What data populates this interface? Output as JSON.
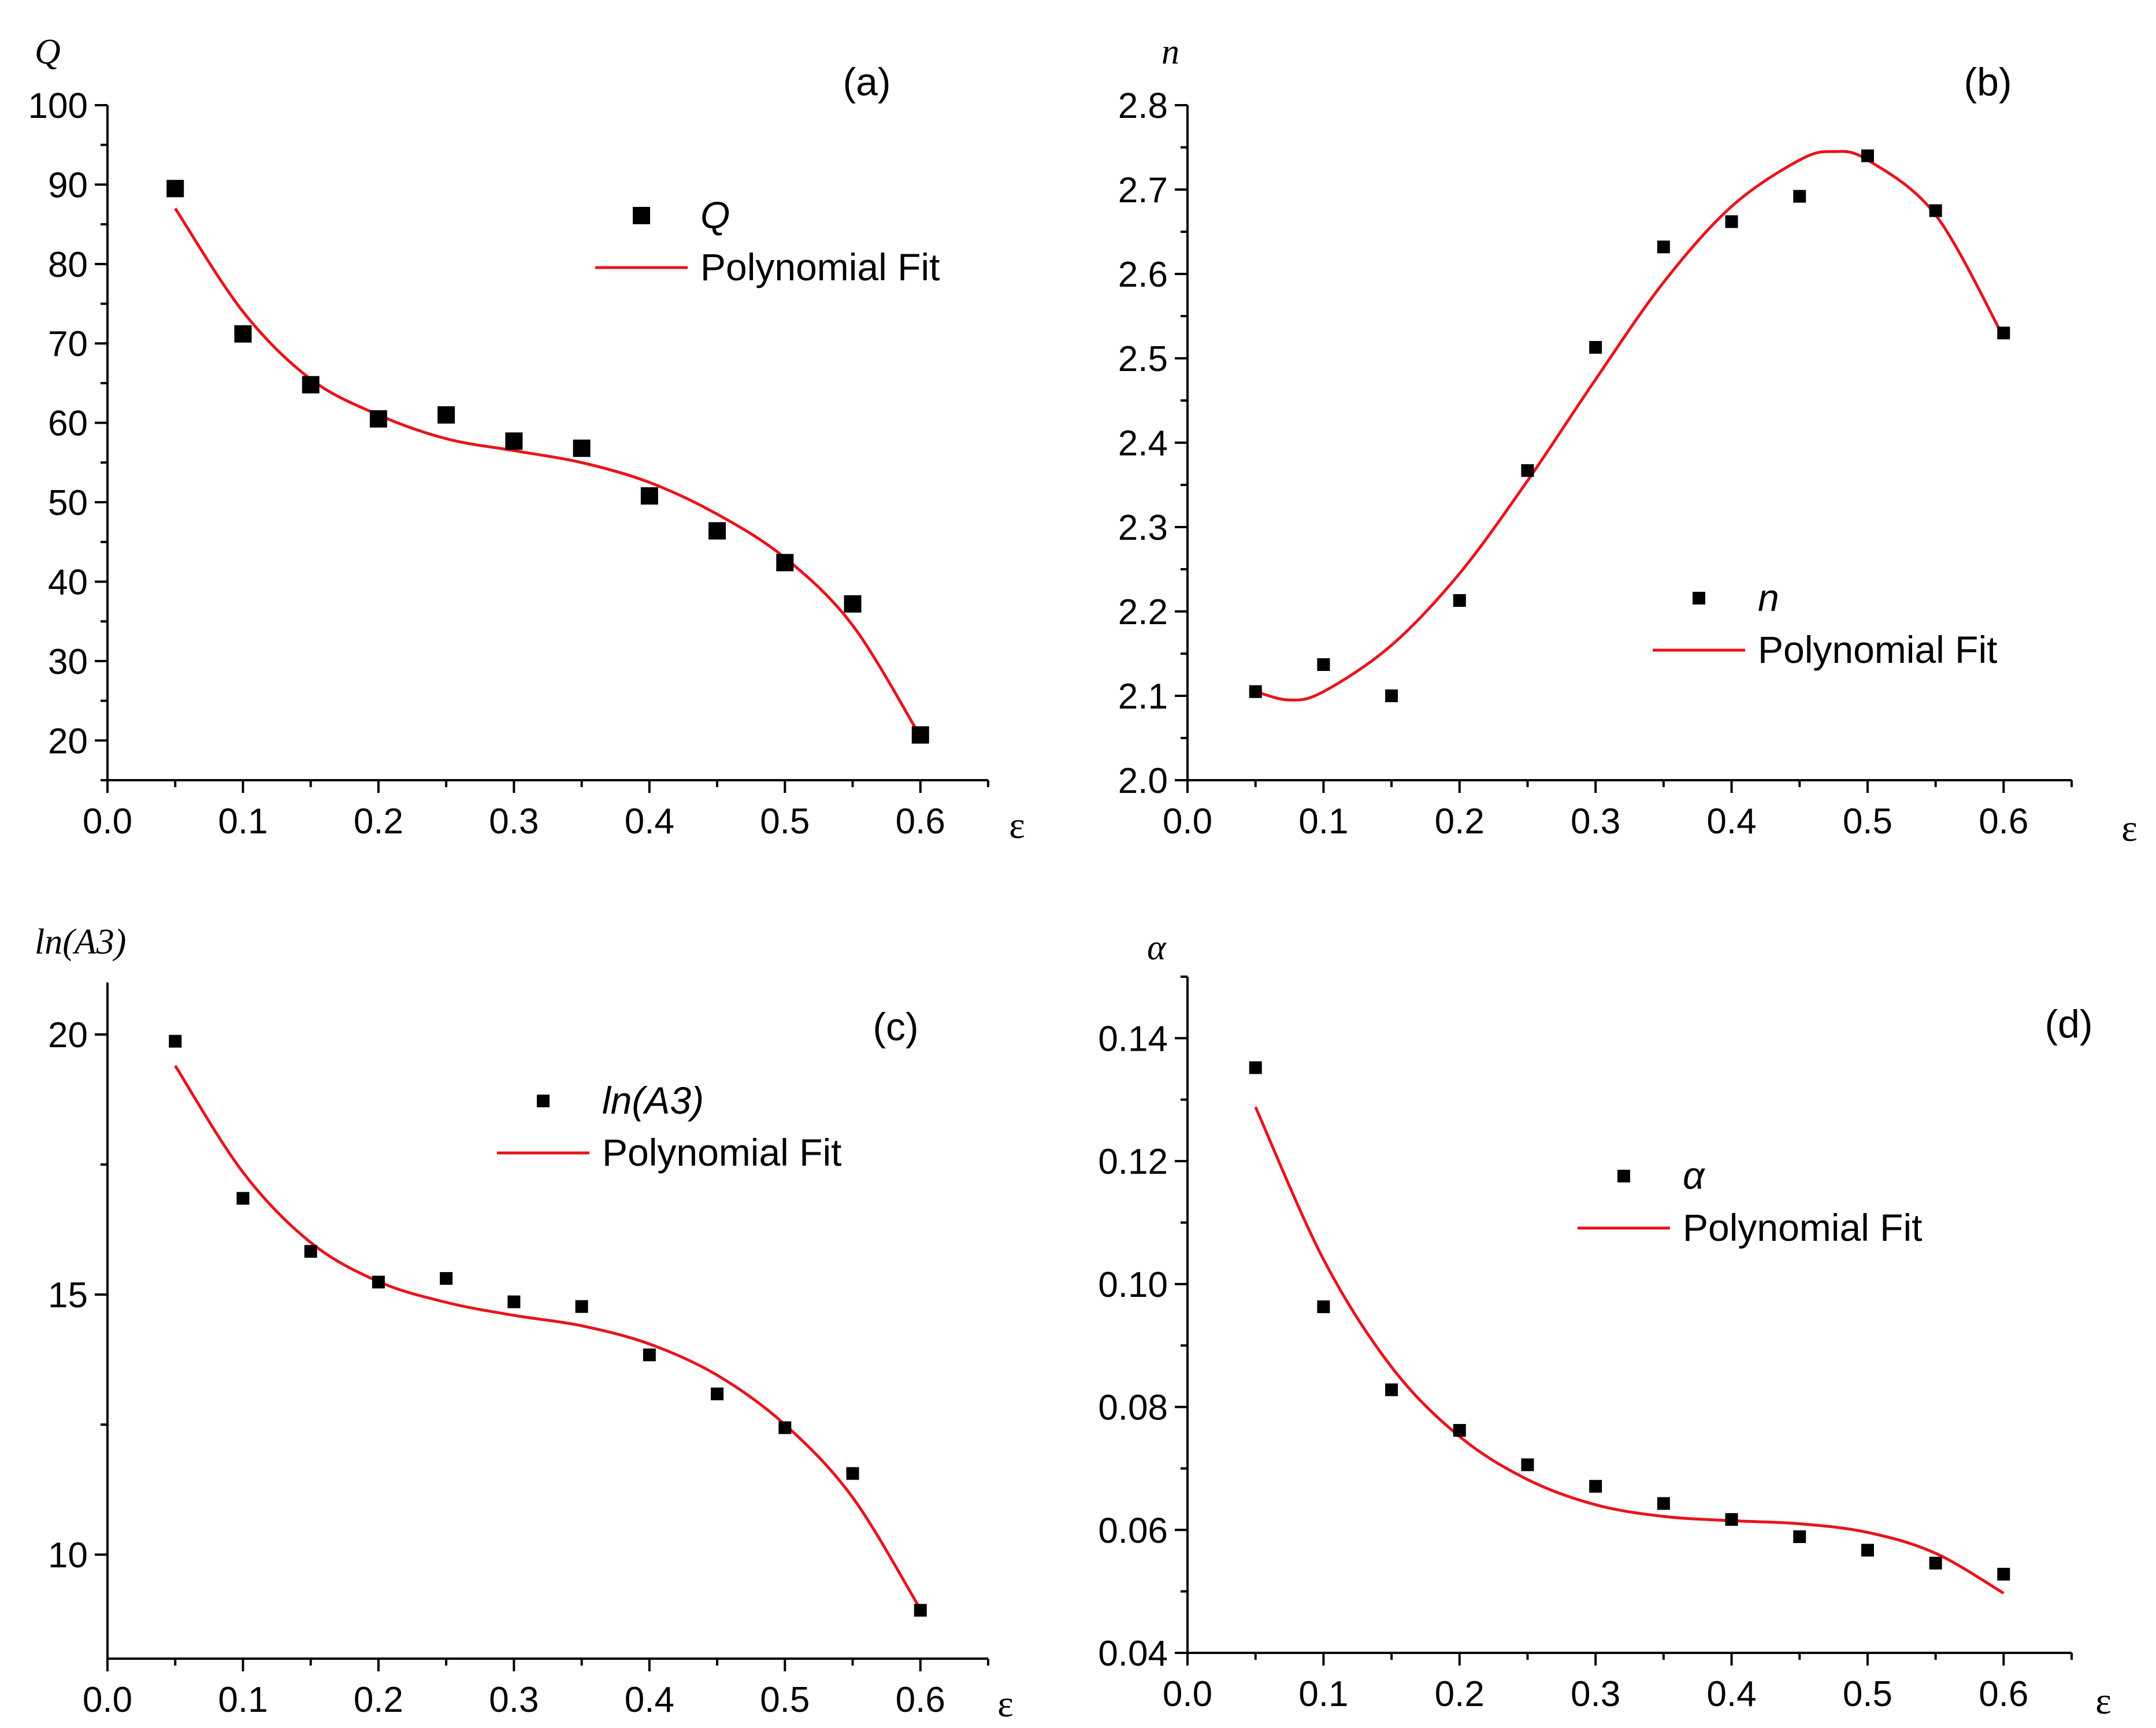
{
  "colors": {
    "fit": "#e8141c",
    "marker": "#000000",
    "axis": "#000000"
  },
  "chart_data": [
    {
      "id": "a",
      "type": "scatter",
      "panel_label": "(a)",
      "ylabel": "Q",
      "xlabel": "ε",
      "xlim": [
        0,
        0.65
      ],
      "ylim": [
        15,
        100
      ],
      "xticks": [
        0.0,
        0.1,
        0.2,
        0.3,
        0.4,
        0.5,
        0.6
      ],
      "xtick_labels": [
        "0.0",
        "0.1",
        "0.2",
        "0.3",
        "0.4",
        "0.5",
        "0.6"
      ],
      "yticks": [
        20,
        30,
        40,
        50,
        60,
        70,
        80,
        90,
        100
      ],
      "ytick_labels": [
        "20",
        "30",
        "40",
        "50",
        "60",
        "70",
        "80",
        "90",
        "100"
      ],
      "marker_size": "large",
      "legend": {
        "position": "top-right",
        "marker_label": "Q",
        "fit_label": "Polynomial Fit"
      },
      "series": [
        {
          "name": "Q",
          "x": [
            0.05,
            0.1,
            0.15,
            0.2,
            0.25,
            0.3,
            0.35,
            0.4,
            0.45,
            0.5,
            0.55,
            0.6
          ],
          "y": [
            89.5,
            71.2,
            64.8,
            60.5,
            61.0,
            57.7,
            56.8,
            50.8,
            46.4,
            42.4,
            37.2,
            20.7
          ]
        },
        {
          "name": "Polynomial Fit",
          "x": [
            0.05,
            0.1,
            0.15,
            0.2,
            0.25,
            0.3,
            0.35,
            0.4,
            0.45,
            0.5,
            0.55,
            0.6
          ],
          "y": [
            87.0,
            74.0,
            65.5,
            61.0,
            58.0,
            56.5,
            55.0,
            52.5,
            48.5,
            43.0,
            34.5,
            20.5
          ]
        }
      ]
    },
    {
      "id": "b",
      "type": "scatter",
      "panel_label": "(b)",
      "ylabel": "n",
      "xlabel": "ε",
      "xlim": [
        0,
        0.65
      ],
      "ylim": [
        2.0,
        2.8
      ],
      "xticks": [
        0.0,
        0.1,
        0.2,
        0.3,
        0.4,
        0.5,
        0.6
      ],
      "xtick_labels": [
        "0.0",
        "0.1",
        "0.2",
        "0.3",
        "0.4",
        "0.5",
        "0.6"
      ],
      "yticks": [
        2.0,
        2.1,
        2.2,
        2.3,
        2.4,
        2.5,
        2.6,
        2.7,
        2.8
      ],
      "ytick_labels": [
        "2.0",
        "2.1",
        "2.2",
        "2.3",
        "2.4",
        "2.5",
        "2.6",
        "2.7",
        "2.8"
      ],
      "marker_size": "small",
      "legend": {
        "position": "center-right",
        "marker_label": "n",
        "fit_label": "Polynomial Fit"
      },
      "series": [
        {
          "name": "n",
          "x": [
            0.05,
            0.1,
            0.15,
            0.2,
            0.25,
            0.3,
            0.35,
            0.4,
            0.45,
            0.5,
            0.55,
            0.6
          ],
          "y": [
            2.105,
            2.137,
            2.1,
            2.213,
            2.367,
            2.513,
            2.632,
            2.662,
            2.692,
            2.74,
            2.675,
            2.53
          ]
        },
        {
          "name": "Polynomial Fit",
          "x": [
            0.05,
            0.075,
            0.1,
            0.15,
            0.2,
            0.25,
            0.3,
            0.35,
            0.4,
            0.45,
            0.475,
            0.5,
            0.55,
            0.6
          ],
          "y": [
            2.105,
            2.095,
            2.105,
            2.16,
            2.245,
            2.355,
            2.475,
            2.59,
            2.68,
            2.735,
            2.745,
            2.735,
            2.67,
            2.525
          ]
        }
      ]
    },
    {
      "id": "c",
      "type": "scatter",
      "panel_label": "(c)",
      "ylabel": "ln(A3)",
      "xlabel": "ε",
      "xlim": [
        0,
        0.65
      ],
      "ylim": [
        8.0,
        21.0
      ],
      "xticks": [
        0.0,
        0.1,
        0.2,
        0.3,
        0.4,
        0.5,
        0.6
      ],
      "xtick_labels": [
        "0.0",
        "0.1",
        "0.2",
        "0.3",
        "0.4",
        "0.5",
        "0.6"
      ],
      "yticks": [
        10,
        15,
        20
      ],
      "ytick_labels": [
        "10",
        "15",
        "20"
      ],
      "marker_size": "small",
      "legend": {
        "position": "top-right",
        "marker_label": "ln(A3)",
        "fit_label": "Polynomial Fit"
      },
      "series": [
        {
          "name": "ln(A3)",
          "x": [
            0.05,
            0.1,
            0.15,
            0.2,
            0.25,
            0.3,
            0.35,
            0.4,
            0.45,
            0.5,
            0.55,
            0.6
          ],
          "y": [
            19.87,
            16.85,
            15.83,
            15.24,
            15.31,
            14.86,
            14.77,
            13.84,
            13.09,
            12.44,
            11.56,
            8.93
          ]
        },
        {
          "name": "Polynomial Fit",
          "x": [
            0.05,
            0.1,
            0.15,
            0.2,
            0.25,
            0.3,
            0.35,
            0.4,
            0.45,
            0.5,
            0.55,
            0.6
          ],
          "y": [
            19.4,
            17.35,
            16.0,
            15.25,
            14.85,
            14.6,
            14.4,
            14.05,
            13.45,
            12.5,
            11.1,
            8.95
          ]
        }
      ]
    },
    {
      "id": "d",
      "type": "scatter",
      "panel_label": "(d)",
      "ylabel": "α",
      "xlabel": "ε",
      "xlim": [
        0,
        0.65
      ],
      "ylim": [
        0.04,
        0.15
      ],
      "xticks": [
        0.0,
        0.1,
        0.2,
        0.3,
        0.4,
        0.5,
        0.6
      ],
      "xtick_labels": [
        "0.0",
        "0.1",
        "0.2",
        "0.3",
        "0.4",
        "0.5",
        "0.6"
      ],
      "yticks": [
        0.04,
        0.06,
        0.08,
        0.1,
        0.12,
        0.14
      ],
      "ytick_labels": [
        "0.04",
        "0.06",
        "0.08",
        "0.10",
        "0.12",
        "0.14"
      ],
      "marker_size": "small",
      "legend": {
        "position": "top-right",
        "marker_label": "α",
        "fit_label": "Polynomial Fit"
      },
      "series": [
        {
          "name": "α",
          "x": [
            0.05,
            0.1,
            0.15,
            0.2,
            0.25,
            0.3,
            0.35,
            0.4,
            0.45,
            0.5,
            0.55,
            0.6
          ],
          "y": [
            0.1352,
            0.0963,
            0.0828,
            0.0762,
            0.0706,
            0.0671,
            0.0643,
            0.0617,
            0.0589,
            0.0567,
            0.0546,
            0.0528
          ]
        },
        {
          "name": "Polynomial Fit",
          "x": [
            0.05,
            0.1,
            0.15,
            0.2,
            0.25,
            0.3,
            0.35,
            0.4,
            0.45,
            0.5,
            0.55,
            0.6
          ],
          "y": [
            0.1288,
            0.104,
            0.0865,
            0.0752,
            0.0682,
            0.0641,
            0.0622,
            0.0615,
            0.061,
            0.0596,
            0.0562,
            0.0497
          ]
        }
      ]
    }
  ]
}
